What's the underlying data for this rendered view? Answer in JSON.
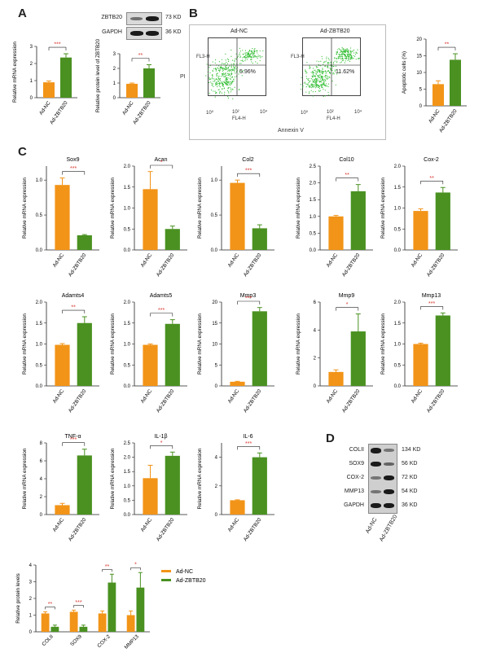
{
  "colors": {
    "nc": "#f29418",
    "zb": "#4a9121",
    "sig": "#d9342b",
    "axis": "#222222"
  },
  "panel_labels": [
    "A",
    "B",
    "C",
    "D"
  ],
  "panelA_blot": {
    "rows": [
      {
        "name": "ZBTB20",
        "size": "73 KD"
      },
      {
        "name": "GAPDH",
        "size": "36 KD"
      }
    ]
  },
  "panelB_flow": {
    "samples": [
      {
        "title": "Ad-NC",
        "pct": "5.96%"
      },
      {
        "title": "Ad-ZBTB20",
        "pct": "11.62%"
      }
    ],
    "y_axis": "PI",
    "x_axis": "Annexin V",
    "inner_y": "FL3-H",
    "inner_x": "FL4-H",
    "tick_labels": [
      "10⁰",
      "10¹",
      "10²",
      "10³",
      "10⁴"
    ]
  },
  "panelD_blot": {
    "rows": [
      {
        "name": "COLII",
        "size": "134 KD"
      },
      {
        "name": "SOX9",
        "size": "56 KD"
      },
      {
        "name": "COX-2",
        "size": "72 KD"
      },
      {
        "name": "MMP13",
        "size": "54 KD"
      },
      {
        "name": "GAPDH",
        "size": "36 KD"
      }
    ],
    "lanes": [
      "Ad-NC",
      "Ad-ZBTB20"
    ]
  },
  "chart_data": [
    {
      "id": "A-mrna",
      "type": "bar",
      "title": "",
      "ylabel": "Relative mRNA expression",
      "categories": [
        "Ad-NC",
        "Ad-ZBTB20"
      ],
      "values": [
        0.9,
        2.35
      ],
      "errors": [
        0.08,
        0.22
      ],
      "ylim": [
        0,
        3
      ],
      "yticks": [
        "0",
        "1",
        "2",
        "3"
      ],
      "sig": "***"
    },
    {
      "id": "A-protein",
      "type": "bar",
      "title": "",
      "ylabel": "Relative protein level of ZBTB20",
      "categories": [
        "Ad-NC",
        "Ad-ZBTB20"
      ],
      "values": [
        0.95,
        2.0
      ],
      "errors": [
        0.05,
        0.25
      ],
      "ylim": [
        0,
        3
      ],
      "yticks": [
        "0",
        "1",
        "2",
        "3"
      ],
      "sig": "**"
    },
    {
      "id": "B-apop",
      "type": "bar",
      "title": "",
      "ylabel": "Apoptotic cells (%)",
      "categories": [
        "Ad-NC",
        "Ad-ZBTB20"
      ],
      "values": [
        6.5,
        13.8
      ],
      "errors": [
        1.0,
        1.8
      ],
      "ylim": [
        0,
        20
      ],
      "yticks": [
        "0",
        "5",
        "10",
        "15",
        "20"
      ],
      "sig": "**"
    },
    {
      "id": "C-sox9",
      "type": "bar",
      "title": "Sox9",
      "ylabel": "Relative mRNA expression",
      "categories": [
        "Ad-NC",
        "Ad-ZBTB20"
      ],
      "values": [
        0.93,
        0.21
      ],
      "errors": [
        0.1,
        0.01
      ],
      "ylim": [
        0,
        1.2
      ],
      "yticks": [
        "0.0",
        "0.5",
        "1.0"
      ],
      "sig": "***"
    },
    {
      "id": "C-acan",
      "type": "bar",
      "title": "Acan",
      "ylabel": "Relative mRNA expression",
      "categories": [
        "Ad-NC",
        "Ad-ZBTB20"
      ],
      "values": [
        1.45,
        0.5
      ],
      "errors": [
        0.42,
        0.07
      ],
      "ylim": [
        0,
        2.0
      ],
      "yticks": [
        "0.0",
        "0.5",
        "1.0",
        "1.5",
        "2.0"
      ],
      "sig": "*"
    },
    {
      "id": "C-col2",
      "type": "bar",
      "title": "Col2",
      "ylabel": "Relative mRNA expression",
      "categories": [
        "Ad-NC",
        "Ad-ZBTB20"
      ],
      "values": [
        0.96,
        0.31
      ],
      "errors": [
        0.04,
        0.05
      ],
      "ylim": [
        0,
        1.2
      ],
      "yticks": [
        "0.0",
        "0.5",
        "1.0"
      ],
      "sig": "***"
    },
    {
      "id": "C-col10",
      "type": "bar",
      "title": "Col10",
      "ylabel": "Relative mRNA expression",
      "categories": [
        "Ad-NC",
        "Ad-ZBTB20"
      ],
      "values": [
        1.0,
        1.75
      ],
      "errors": [
        0.03,
        0.2
      ],
      "ylim": [
        0,
        2.5
      ],
      "yticks": [
        "0.0",
        "0.5",
        "1.0",
        "1.5",
        "2.0",
        "2.5"
      ],
      "sig": "**"
    },
    {
      "id": "C-cox2",
      "type": "bar",
      "title": "Cox-2",
      "ylabel": "Relative mRNA expression",
      "categories": [
        "Ad-NC",
        "Ad-ZBTB20"
      ],
      "values": [
        0.93,
        1.37
      ],
      "errors": [
        0.05,
        0.12
      ],
      "ylim": [
        0,
        2.0
      ],
      "yticks": [
        "0.0",
        "0.5",
        "1.0",
        "1.5",
        "2.0"
      ],
      "sig": "**"
    },
    {
      "id": "C-adamts4",
      "type": "bar",
      "title": "Adamts4",
      "ylabel": "Relative mRNA expression",
      "categories": [
        "Ad-NC",
        "Ad-ZBTB20"
      ],
      "values": [
        0.98,
        1.5
      ],
      "errors": [
        0.03,
        0.15
      ],
      "ylim": [
        0,
        2.0
      ],
      "yticks": [
        "0.0",
        "0.5",
        "1.0",
        "1.5",
        "2.0"
      ],
      "sig": "**"
    },
    {
      "id": "C-adamts5",
      "type": "bar",
      "title": "Adamts5",
      "ylabel": "Relative mRNA expression",
      "categories": [
        "Ad-NC",
        "Ad-ZBTB20"
      ],
      "values": [
        0.98,
        1.48
      ],
      "errors": [
        0.02,
        0.1
      ],
      "ylim": [
        0,
        2.0
      ],
      "yticks": [
        "0.0",
        "0.5",
        "1.0",
        "1.5",
        "2.0"
      ],
      "sig": "***"
    },
    {
      "id": "C-mmp3",
      "type": "bar",
      "title": "Mmp3",
      "ylabel": "Relative mRNA expression",
      "categories": [
        "Ad-NC",
        "Ad-ZBTB20"
      ],
      "values": [
        1.0,
        17.8
      ],
      "errors": [
        0.1,
        0.9
      ],
      "ylim": [
        0,
        20
      ],
      "yticks": [
        "0",
        "5",
        "10",
        "15",
        "20"
      ],
      "sig": "***"
    },
    {
      "id": "C-mmp9",
      "type": "bar",
      "title": "Mmp9",
      "ylabel": "Relative mRNA expression",
      "categories": [
        "Ad-NC",
        "Ad-ZBTB20"
      ],
      "values": [
        1.0,
        3.9
      ],
      "errors": [
        0.15,
        1.25
      ],
      "ylim": [
        0,
        6
      ],
      "yticks": [
        "0",
        "2",
        "4",
        "6"
      ],
      "sig": "*"
    },
    {
      "id": "C-mmp13",
      "type": "bar",
      "title": "Mmp13",
      "ylabel": "Relative mRNA expression",
      "categories": [
        "Ad-NC",
        "Ad-ZBTB20"
      ],
      "values": [
        1.0,
        1.68
      ],
      "errors": [
        0.02,
        0.06
      ],
      "ylim": [
        0,
        2.0
      ],
      "yticks": [
        "0.0",
        "0.5",
        "1.0",
        "1.5",
        "2.0"
      ],
      "sig": "***"
    },
    {
      "id": "C-tnfa",
      "type": "bar",
      "title": "TNF-α",
      "ylabel": "Relative mRNA expression",
      "categories": [
        "Ad-NC",
        "Ad-ZBTB20"
      ],
      "values": [
        1.05,
        6.6
      ],
      "errors": [
        0.2,
        0.7
      ],
      "ylim": [
        0,
        8
      ],
      "yticks": [
        "0",
        "2",
        "4",
        "6",
        "8"
      ],
      "sig": "***"
    },
    {
      "id": "C-il1b",
      "type": "bar",
      "title": "IL-1β",
      "ylabel": "Relative mRNA expression",
      "categories": [
        "Ad-NC",
        "Ad-ZBTB20"
      ],
      "values": [
        1.27,
        2.05
      ],
      "errors": [
        0.45,
        0.13
      ],
      "ylim": [
        0,
        2.5
      ],
      "yticks": [
        "0.0",
        "0.5",
        "1.0",
        "1.5",
        "2.0",
        "2.5"
      ],
      "sig": "*"
    },
    {
      "id": "C-il6",
      "type": "bar",
      "title": "IL-6",
      "ylabel": "Relative mRNA expression",
      "categories": [
        "Ad-NC",
        "Ad-ZBTB20"
      ],
      "values": [
        1.0,
        4.0
      ],
      "errors": [
        0.03,
        0.3
      ],
      "ylim": [
        0,
        5
      ],
      "yticks": [
        "0",
        "2",
        "4"
      ],
      "sig": "***"
    },
    {
      "id": "D-protein",
      "type": "bar",
      "title": "",
      "ylabel": "Relative protein levels",
      "categories": [
        "COLII",
        "SOX9",
        "COX-2",
        "MMP13"
      ],
      "series": [
        {
          "name": "Ad-NC",
          "values": [
            1.1,
            1.2,
            1.1,
            1.0
          ],
          "errors": [
            0.1,
            0.1,
            0.15,
            0.25
          ]
        },
        {
          "name": "Ad-ZBTB20",
          "values": [
            0.3,
            0.3,
            2.95,
            2.65
          ],
          "errors": [
            0.1,
            0.1,
            0.5,
            0.9
          ]
        }
      ],
      "sig": [
        "**",
        "***",
        "**",
        "*"
      ],
      "ylim": [
        0,
        4
      ],
      "yticks": [
        "0",
        "1",
        "2",
        "3",
        "4"
      ],
      "legend": "top-right"
    }
  ]
}
